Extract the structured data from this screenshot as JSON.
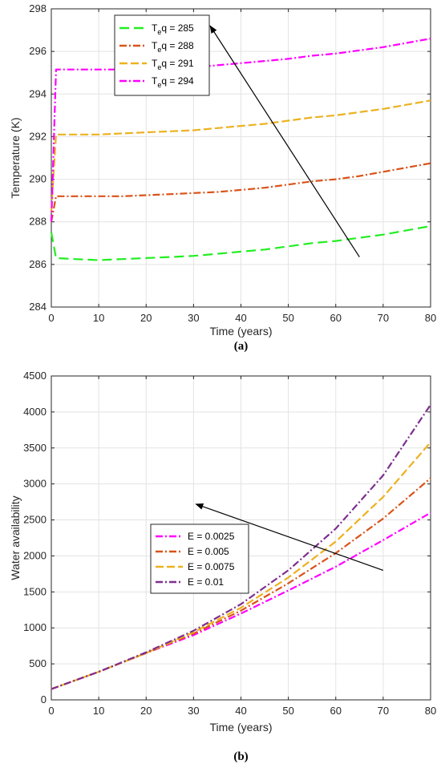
{
  "chart_data": [
    {
      "type": "line",
      "caption": "(a)",
      "xlabel": "Time (years)",
      "ylabel": "Temperature (K)",
      "xlim": [
        0,
        80
      ],
      "ylim": [
        284,
        298
      ],
      "xticks": [
        0,
        10,
        20,
        30,
        40,
        50,
        60,
        70,
        80
      ],
      "yticks": [
        284,
        286,
        288,
        290,
        292,
        294,
        296,
        298
      ],
      "grid": true,
      "legend_position": "top-left",
      "series": [
        {
          "name": "T",
          "sub": "e",
          "name_rest": "q = 285",
          "color": "#22ee22",
          "dash": "12,6",
          "x": [
            0,
            1,
            5,
            10,
            15,
            20,
            25,
            30,
            35,
            40,
            45,
            50,
            55,
            60,
            65,
            70,
            75,
            80
          ],
          "y": [
            287.5,
            286.3,
            286.25,
            286.2,
            286.25,
            286.3,
            286.35,
            286.4,
            286.5,
            286.6,
            286.7,
            286.85,
            287.0,
            287.1,
            287.25,
            287.4,
            287.6,
            287.8
          ]
        },
        {
          "name": "T",
          "sub": "e",
          "name_rest": "q = 288",
          "color": "#d95319",
          "dash": "9,3,2,3",
          "x": [
            0,
            1,
            5,
            10,
            15,
            20,
            25,
            30,
            35,
            40,
            45,
            50,
            55,
            60,
            65,
            70,
            75,
            80
          ],
          "y": [
            288.0,
            289.2,
            289.2,
            289.2,
            289.2,
            289.25,
            289.3,
            289.35,
            289.4,
            289.5,
            289.6,
            289.75,
            289.9,
            290.0,
            290.15,
            290.35,
            290.55,
            290.75
          ]
        },
        {
          "name": "T",
          "sub": "e",
          "name_rest": "q = 291",
          "color": "#edb120",
          "dash": "10,4",
          "x": [
            0,
            1,
            5,
            10,
            15,
            20,
            25,
            30,
            35,
            40,
            45,
            50,
            55,
            60,
            65,
            70,
            75,
            80
          ],
          "y": [
            288.5,
            292.1,
            292.1,
            292.1,
            292.15,
            292.2,
            292.25,
            292.3,
            292.4,
            292.5,
            292.6,
            292.75,
            292.9,
            293.0,
            293.15,
            293.3,
            293.5,
            293.7
          ]
        },
        {
          "name": "T",
          "sub": "e",
          "name_rest": "q = 294",
          "color": "#ff00ff",
          "dash": "9,3,2,3",
          "x": [
            0,
            1,
            5,
            10,
            15,
            20,
            25,
            30,
            35,
            40,
            45,
            50,
            55,
            60,
            65,
            70,
            75,
            80
          ],
          "y": [
            288.0,
            295.15,
            295.15,
            295.15,
            295.15,
            295.2,
            295.2,
            295.25,
            295.35,
            295.45,
            295.55,
            295.65,
            295.8,
            295.9,
            296.05,
            296.2,
            296.4,
            296.6
          ]
        }
      ],
      "arrow": {
        "from": [
          65,
          286.35
        ],
        "to": [
          33.5,
          297.2
        ]
      }
    },
    {
      "type": "line",
      "caption": "(b)",
      "xlabel": "Time (years)",
      "ylabel": "Water availability",
      "xlim": [
        0,
        80
      ],
      "ylim": [
        0,
        4500
      ],
      "xticks": [
        0,
        10,
        20,
        30,
        40,
        50,
        60,
        70,
        80
      ],
      "yticks": [
        0,
        500,
        1000,
        1500,
        2000,
        2500,
        3000,
        3500,
        4000,
        4500
      ],
      "grid": true,
      "legend_position": "center",
      "series": [
        {
          "name": "E = 0.0025",
          "color": "#ff00ff",
          "dash": "9,3,2,3",
          "x": [
            0,
            10,
            20,
            30,
            40,
            50,
            60,
            70,
            80
          ],
          "y": [
            150,
            390,
            650,
            900,
            1200,
            1520,
            1850,
            2220,
            2600
          ]
        },
        {
          "name": "E = 0.005",
          "color": "#d95319",
          "dash": "9,3,2,3",
          "x": [
            0,
            10,
            20,
            30,
            40,
            50,
            60,
            70,
            80
          ],
          "y": [
            150,
            390,
            650,
            920,
            1240,
            1620,
            2040,
            2520,
            3080
          ]
        },
        {
          "name": "E = 0.0075",
          "color": "#edb120",
          "dash": "10,4",
          "x": [
            0,
            10,
            20,
            30,
            40,
            50,
            60,
            70,
            80
          ],
          "y": [
            150,
            390,
            650,
            940,
            1280,
            1700,
            2200,
            2820,
            3580
          ]
        },
        {
          "name": "E = 0.01",
          "color": "#7e2f8e",
          "dash": "9,3,2,3",
          "x": [
            0,
            10,
            20,
            30,
            40,
            50,
            60,
            70,
            80
          ],
          "y": [
            150,
            390,
            660,
            960,
            1330,
            1800,
            2380,
            3120,
            4100
          ]
        }
      ],
      "arrow": {
        "from": [
          70,
          1800
        ],
        "to": [
          30.5,
          2720
        ]
      }
    }
  ]
}
